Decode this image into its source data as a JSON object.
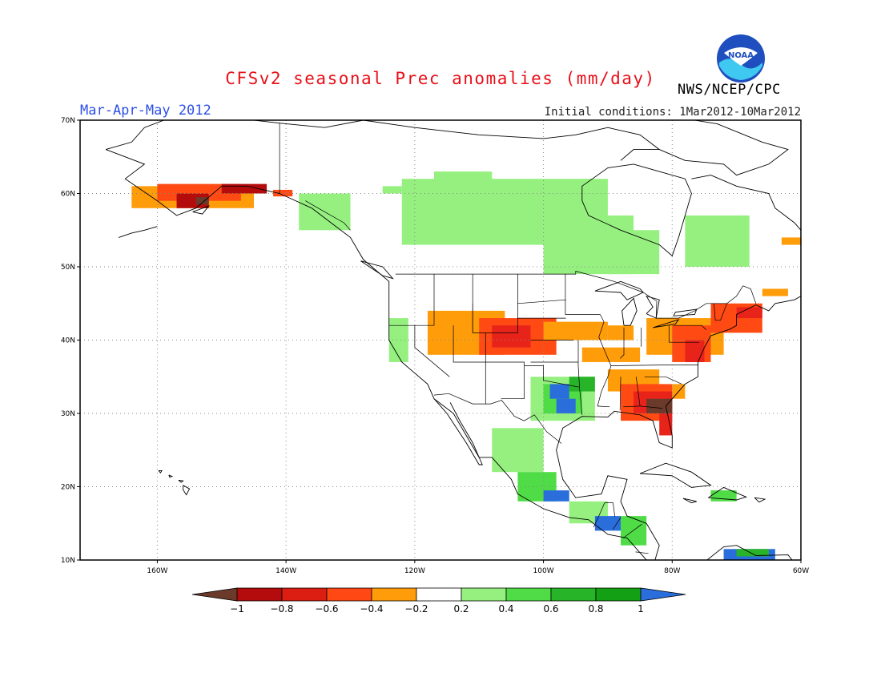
{
  "header": {
    "title": "CFSv2 seasonal Prec anomalies (mm/day)",
    "season": "Mar-Apr-May 2012",
    "initial_conditions": "Initial conditions: 1Mar2012-10Mar2012",
    "agency": "NWS/NCEP/CPC",
    "logo_text": "NOAA"
  },
  "map": {
    "region": "North America",
    "lon_range": [
      -172,
      -60
    ],
    "lat_range": [
      10,
      70
    ],
    "lat_labels": [
      "70N",
      "60N",
      "50N",
      "40N",
      "30N",
      "20N",
      "10N"
    ],
    "lon_labels": [
      "160W",
      "140W",
      "120W",
      "100W",
      "80W",
      "60W"
    ]
  },
  "legend": {
    "labels": [
      "-1",
      "-0.8",
      "-0.6",
      "-0.4",
      "-0.2",
      "0.2",
      "0.4",
      "0.6",
      "0.8",
      "1"
    ],
    "colors": [
      "#6b3a2a",
      "#b40c0c",
      "#dc1e12",
      "#ff4814",
      "#ff9c0a",
      "#ffffff",
      "#96f080",
      "#50dc46",
      "#28b428",
      "#14a014",
      "#2a6edc"
    ]
  },
  "colors": {
    "brown": "#6b3a2a",
    "dark_red": "#b40c0c",
    "red": "#e8231a",
    "orange_red": "#ff4a14",
    "orange": "#ff9c0a",
    "light_green": "#96f080",
    "green": "#50dc46",
    "mid_green": "#28b428",
    "dark_green": "#14a014",
    "blue": "#2a6edc"
  }
}
